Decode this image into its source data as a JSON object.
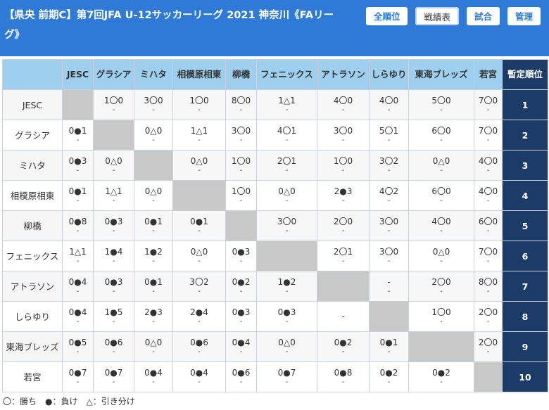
{
  "header": {
    "title": "【県央 前期C】第7回JFA U-12サッカーリーグ 2021 神奈川《FAリーグ》",
    "nav": [
      {
        "label": "全順位",
        "active": false
      },
      {
        "label": "戦績表",
        "active": true
      },
      {
        "label": "試合",
        "active": false
      },
      {
        "label": "管理",
        "active": false
      }
    ]
  },
  "colors": {
    "header": "#2f7ad6",
    "table_head": "#9fcfee",
    "rank": "#1c3b66",
    "diagonal": "#c8c8c8"
  },
  "table": {
    "rank_header": "暫定順位",
    "teams": [
      "JESC",
      "グラシア",
      "ミハタ",
      "相模原相東",
      "柳橋",
      "フェニックス",
      "アトラソン",
      "しらゆり",
      "東海ブレッズ",
      "若宮"
    ],
    "rows": [
      {
        "team": "JESC",
        "rank": "1",
        "cells": [
          null,
          {
            "s": "1〇0",
            "n": "-"
          },
          {
            "s": "3〇0",
            "n": "-"
          },
          {
            "s": "1〇0",
            "n": "-"
          },
          {
            "s": "8〇0",
            "n": "-"
          },
          {
            "s": "1△1",
            "n": "-"
          },
          {
            "s": "4〇0",
            "n": "-"
          },
          {
            "s": "4〇0",
            "n": "-"
          },
          {
            "s": "5〇0",
            "n": "-"
          },
          {
            "s": "7〇0",
            "n": "-"
          }
        ]
      },
      {
        "team": "グラシア",
        "rank": "2",
        "cells": [
          {
            "s": "0●1",
            "n": "-"
          },
          null,
          {
            "s": "0△0",
            "n": "-"
          },
          {
            "s": "1△1",
            "n": "-"
          },
          {
            "s": "3〇0",
            "n": "-"
          },
          {
            "s": "4〇1",
            "n": "-"
          },
          {
            "s": "3〇0",
            "n": "-"
          },
          {
            "s": "5〇1",
            "n": "-"
          },
          {
            "s": "6〇0",
            "n": "-"
          },
          {
            "s": "7〇0",
            "n": "-"
          }
        ]
      },
      {
        "team": "ミハタ",
        "rank": "3",
        "cells": [
          {
            "s": "0●3",
            "n": "-"
          },
          {
            "s": "0△0",
            "n": "-"
          },
          null,
          {
            "s": "0△0",
            "n": "-"
          },
          {
            "s": "1〇0",
            "n": "-"
          },
          {
            "s": "2〇1",
            "n": "-"
          },
          {
            "s": "1〇0",
            "n": "-"
          },
          {
            "s": "3〇2",
            "n": "-"
          },
          {
            "s": "0△0",
            "n": "-"
          },
          {
            "s": "4〇0",
            "n": "-"
          }
        ]
      },
      {
        "team": "相模原相東",
        "rank": "4",
        "cells": [
          {
            "s": "0●1",
            "n": "-"
          },
          {
            "s": "1△1",
            "n": "-"
          },
          {
            "s": "0△0",
            "n": "-"
          },
          null,
          {
            "s": "1〇0",
            "n": "-"
          },
          {
            "s": "0△0",
            "n": "-"
          },
          {
            "s": "2●3",
            "n": "-"
          },
          {
            "s": "4〇2",
            "n": "-"
          },
          {
            "s": "6〇0",
            "n": "-"
          },
          {
            "s": "4〇0",
            "n": "-"
          }
        ]
      },
      {
        "team": "柳橋",
        "rank": "5",
        "cells": [
          {
            "s": "0●8",
            "n": "-"
          },
          {
            "s": "0●3",
            "n": "-"
          },
          {
            "s": "0●1",
            "n": "-"
          },
          {
            "s": "0●1",
            "n": "-"
          },
          null,
          {
            "s": "3〇0",
            "n": "-"
          },
          {
            "s": "2〇0",
            "n": "-"
          },
          {
            "s": "3〇0",
            "n": "-"
          },
          {
            "s": "4〇0",
            "n": "-"
          },
          {
            "s": "6〇0",
            "n": "-"
          }
        ]
      },
      {
        "team": "フェニックス",
        "rank": "6",
        "cells": [
          {
            "s": "1△1",
            "n": "-"
          },
          {
            "s": "1●4",
            "n": "-"
          },
          {
            "s": "1●2",
            "n": "-"
          },
          {
            "s": "0△0",
            "n": "-"
          },
          {
            "s": "0●3",
            "n": "-"
          },
          null,
          {
            "s": "2〇1",
            "n": "-"
          },
          {
            "s": "3〇0",
            "n": "-"
          },
          {
            "s": "0△0",
            "n": "-"
          },
          {
            "s": "7〇0",
            "n": "-"
          }
        ]
      },
      {
        "team": "アトラソン",
        "rank": "7",
        "cells": [
          {
            "s": "0●4",
            "n": "-"
          },
          {
            "s": "0●3",
            "n": "-"
          },
          {
            "s": "0●1",
            "n": "-"
          },
          {
            "s": "3〇2",
            "n": "-"
          },
          {
            "s": "0●2",
            "n": "-"
          },
          {
            "s": "1●2",
            "n": "-"
          },
          null,
          {
            "s": "-",
            "n": "-"
          },
          {
            "s": "2〇0",
            "n": "-"
          },
          {
            "s": "8〇0",
            "n": "-"
          }
        ]
      },
      {
        "team": "しらゆり",
        "rank": "8",
        "cells": [
          {
            "s": "0●4",
            "n": "-"
          },
          {
            "s": "1●5",
            "n": "-"
          },
          {
            "s": "2●3",
            "n": "-"
          },
          {
            "s": "2●4",
            "n": "-"
          },
          {
            "s": "0●3",
            "n": "-"
          },
          {
            "s": "0●3",
            "n": "-"
          },
          {
            "s": "-",
            "n": ""
          },
          null,
          {
            "s": "1〇0",
            "n": "-"
          },
          {
            "s": "2〇0",
            "n": "-"
          }
        ]
      },
      {
        "team": "東海ブレッズ",
        "rank": "9",
        "cells": [
          {
            "s": "0●5",
            "n": "-"
          },
          {
            "s": "0●6",
            "n": "-"
          },
          {
            "s": "0△0",
            "n": "-"
          },
          {
            "s": "0●6",
            "n": "-"
          },
          {
            "s": "0●4",
            "n": "-"
          },
          {
            "s": "0△0",
            "n": "-"
          },
          {
            "s": "0●2",
            "n": "-"
          },
          {
            "s": "0●1",
            "n": "-"
          },
          null,
          {
            "s": "2〇0",
            "n": "-"
          }
        ]
      },
      {
        "team": "若宮",
        "rank": "10",
        "cells": [
          {
            "s": "0●7",
            "n": "-"
          },
          {
            "s": "0●7",
            "n": "-"
          },
          {
            "s": "0●4",
            "n": "-"
          },
          {
            "s": "0●4",
            "n": "-"
          },
          {
            "s": "0●6",
            "n": "-"
          },
          {
            "s": "0●7",
            "n": "-"
          },
          {
            "s": "0●8",
            "n": "-"
          },
          {
            "s": "0●2",
            "n": "-"
          },
          {
            "s": "0●2",
            "n": "-"
          },
          null
        ]
      }
    ]
  },
  "legend": "〇：勝ち　●：負け　△：引き分け"
}
